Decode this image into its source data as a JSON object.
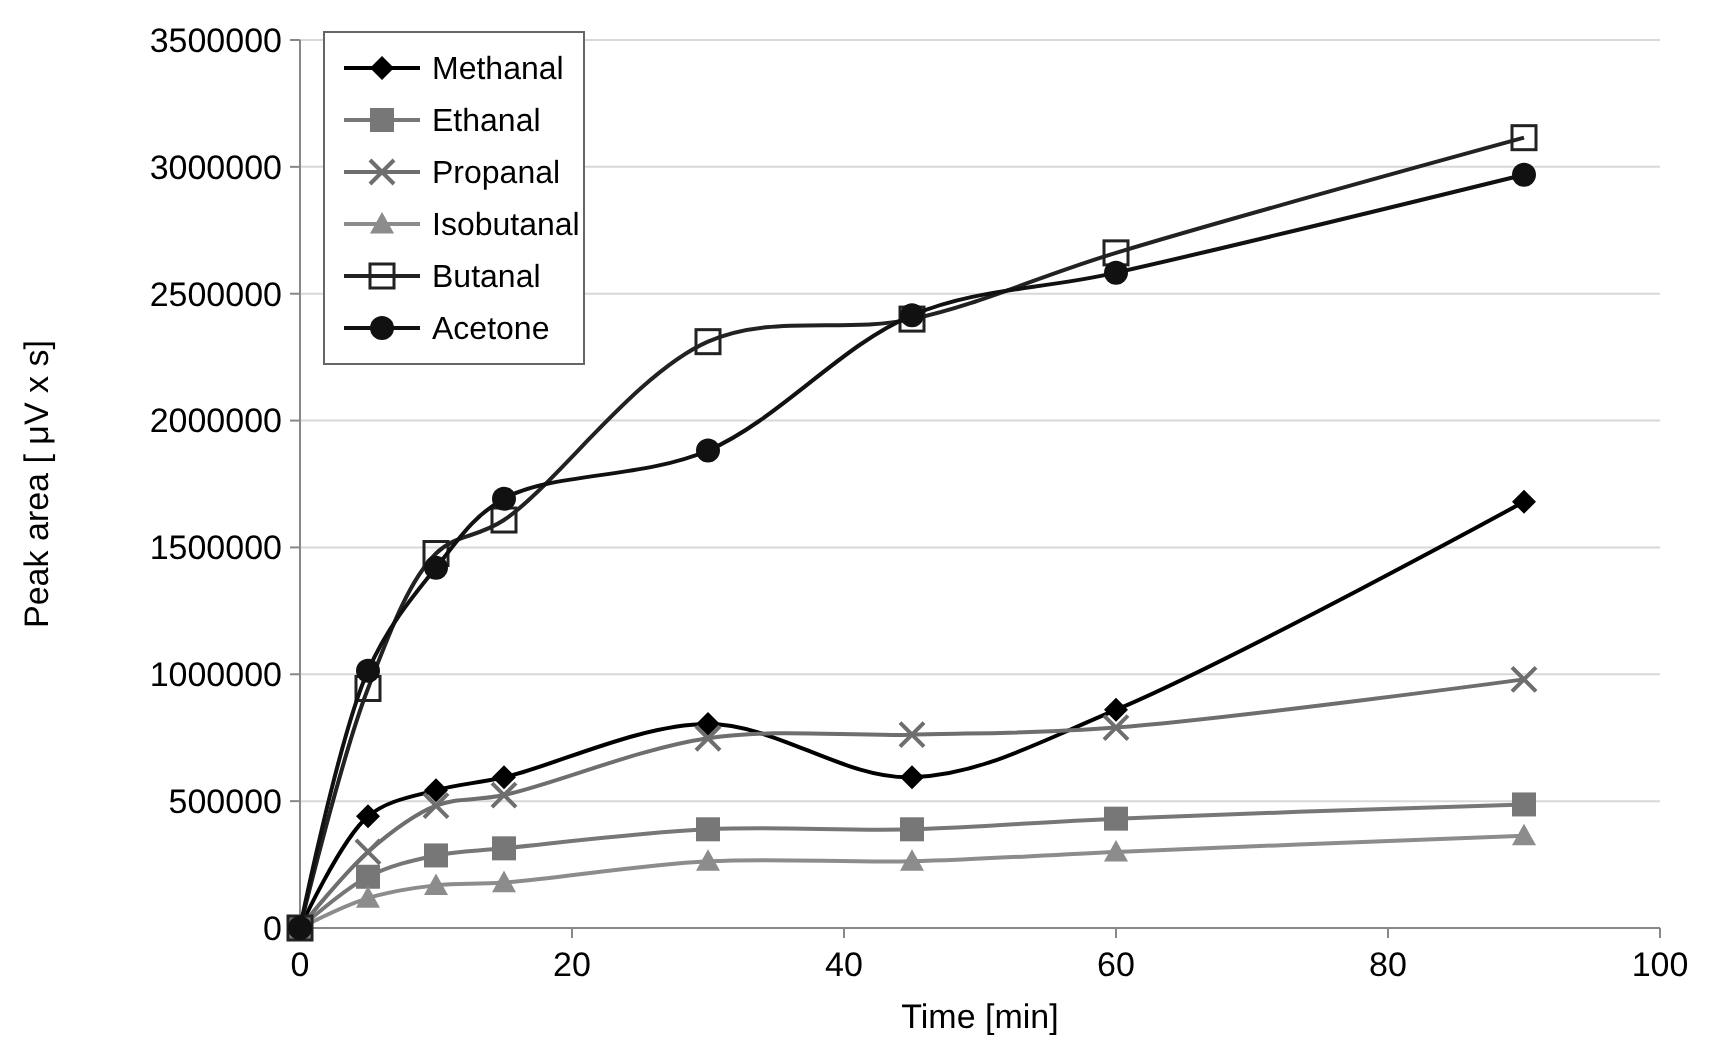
{
  "chart_data": {
    "type": "line",
    "xlabel": "Time [min]",
    "ylabel": "Peak area [ μV x s]",
    "x": [
      0,
      5,
      10,
      15,
      30,
      45,
      60,
      90
    ],
    "series": [
      {
        "name": "Methanal",
        "color": "#000000",
        "marker": "diamond",
        "values": [
          0,
          440000,
          543000,
          594000,
          804000,
          594000,
          860000,
          1680000
        ]
      },
      {
        "name": "Ethanal",
        "color": "#777777",
        "marker": "square",
        "values": [
          0,
          202000,
          286000,
          314000,
          389000,
          389000,
          431000,
          487000
        ]
      },
      {
        "name": "Propanal",
        "color": "#6e6e6e",
        "marker": "cross",
        "values": [
          0,
          300000,
          482000,
          524000,
          748000,
          762000,
          790000,
          980000
        ]
      },
      {
        "name": "Isobutanal",
        "color": "#8c8c8c",
        "marker": "triangle",
        "values": [
          0,
          118000,
          168000,
          179000,
          263000,
          263000,
          300000,
          364000
        ]
      },
      {
        "name": "Butanal",
        "color": "#222222",
        "marker": "square-open",
        "values": [
          0,
          944000,
          1476000,
          1608000,
          2311000,
          2400000,
          2661000,
          3115000
        ]
      },
      {
        "name": "Acetone",
        "color": "#111111",
        "marker": "circle",
        "values": [
          0,
          1014000,
          1420000,
          1692000,
          1882000,
          2415000,
          2583000,
          2969000
        ]
      }
    ],
    "xlim": [
      0,
      100
    ],
    "xticks": [
      0,
      20,
      40,
      60,
      80,
      100
    ],
    "ylim": [
      0,
      3500000
    ],
    "yticks": [
      0,
      500000,
      1000000,
      1500000,
      2000000,
      2500000,
      3000000,
      3500000
    ],
    "grid": "y",
    "legend": "top left"
  }
}
